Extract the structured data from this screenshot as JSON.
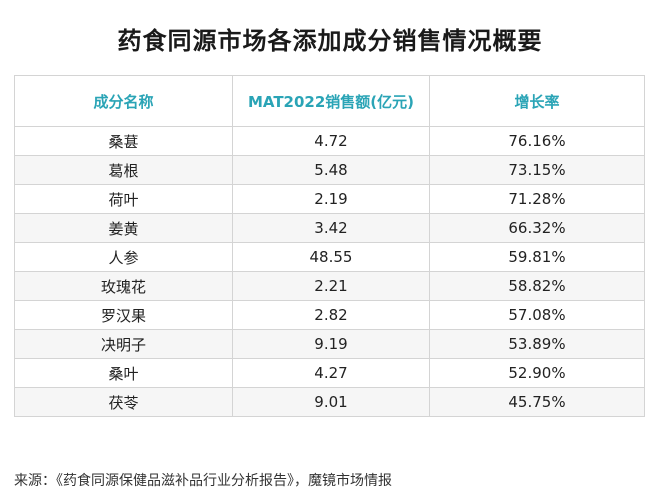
{
  "title": "药食同源市场各添加成分销售情况概要",
  "chart_data": {
    "type": "table",
    "columns": [
      "成分名称",
      "MAT2022销售额(亿元)",
      "增长率"
    ],
    "rows": [
      [
        "桑葚",
        "4.72",
        "76.16%"
      ],
      [
        "葛根",
        "5.48",
        "73.15%"
      ],
      [
        "荷叶",
        "2.19",
        "71.28%"
      ],
      [
        "姜黄",
        "3.42",
        "66.32%"
      ],
      [
        "人参",
        "48.55",
        "59.81%"
      ],
      [
        "玫瑰花",
        "2.21",
        "58.82%"
      ],
      [
        "罗汉果",
        "2.82",
        "57.08%"
      ],
      [
        "决明子",
        "9.19",
        "53.89%"
      ],
      [
        "桑叶",
        "4.27",
        "52.90%"
      ],
      [
        "茯苓",
        "9.01",
        "45.75%"
      ]
    ]
  },
  "source": "来源：《药食同源保健品滋补品行业分析报告》，魔镜市场情报",
  "colors": {
    "header_text": "#2aa4b6",
    "border": "#d4d4d4",
    "stripe": "#f6f6f6"
  }
}
